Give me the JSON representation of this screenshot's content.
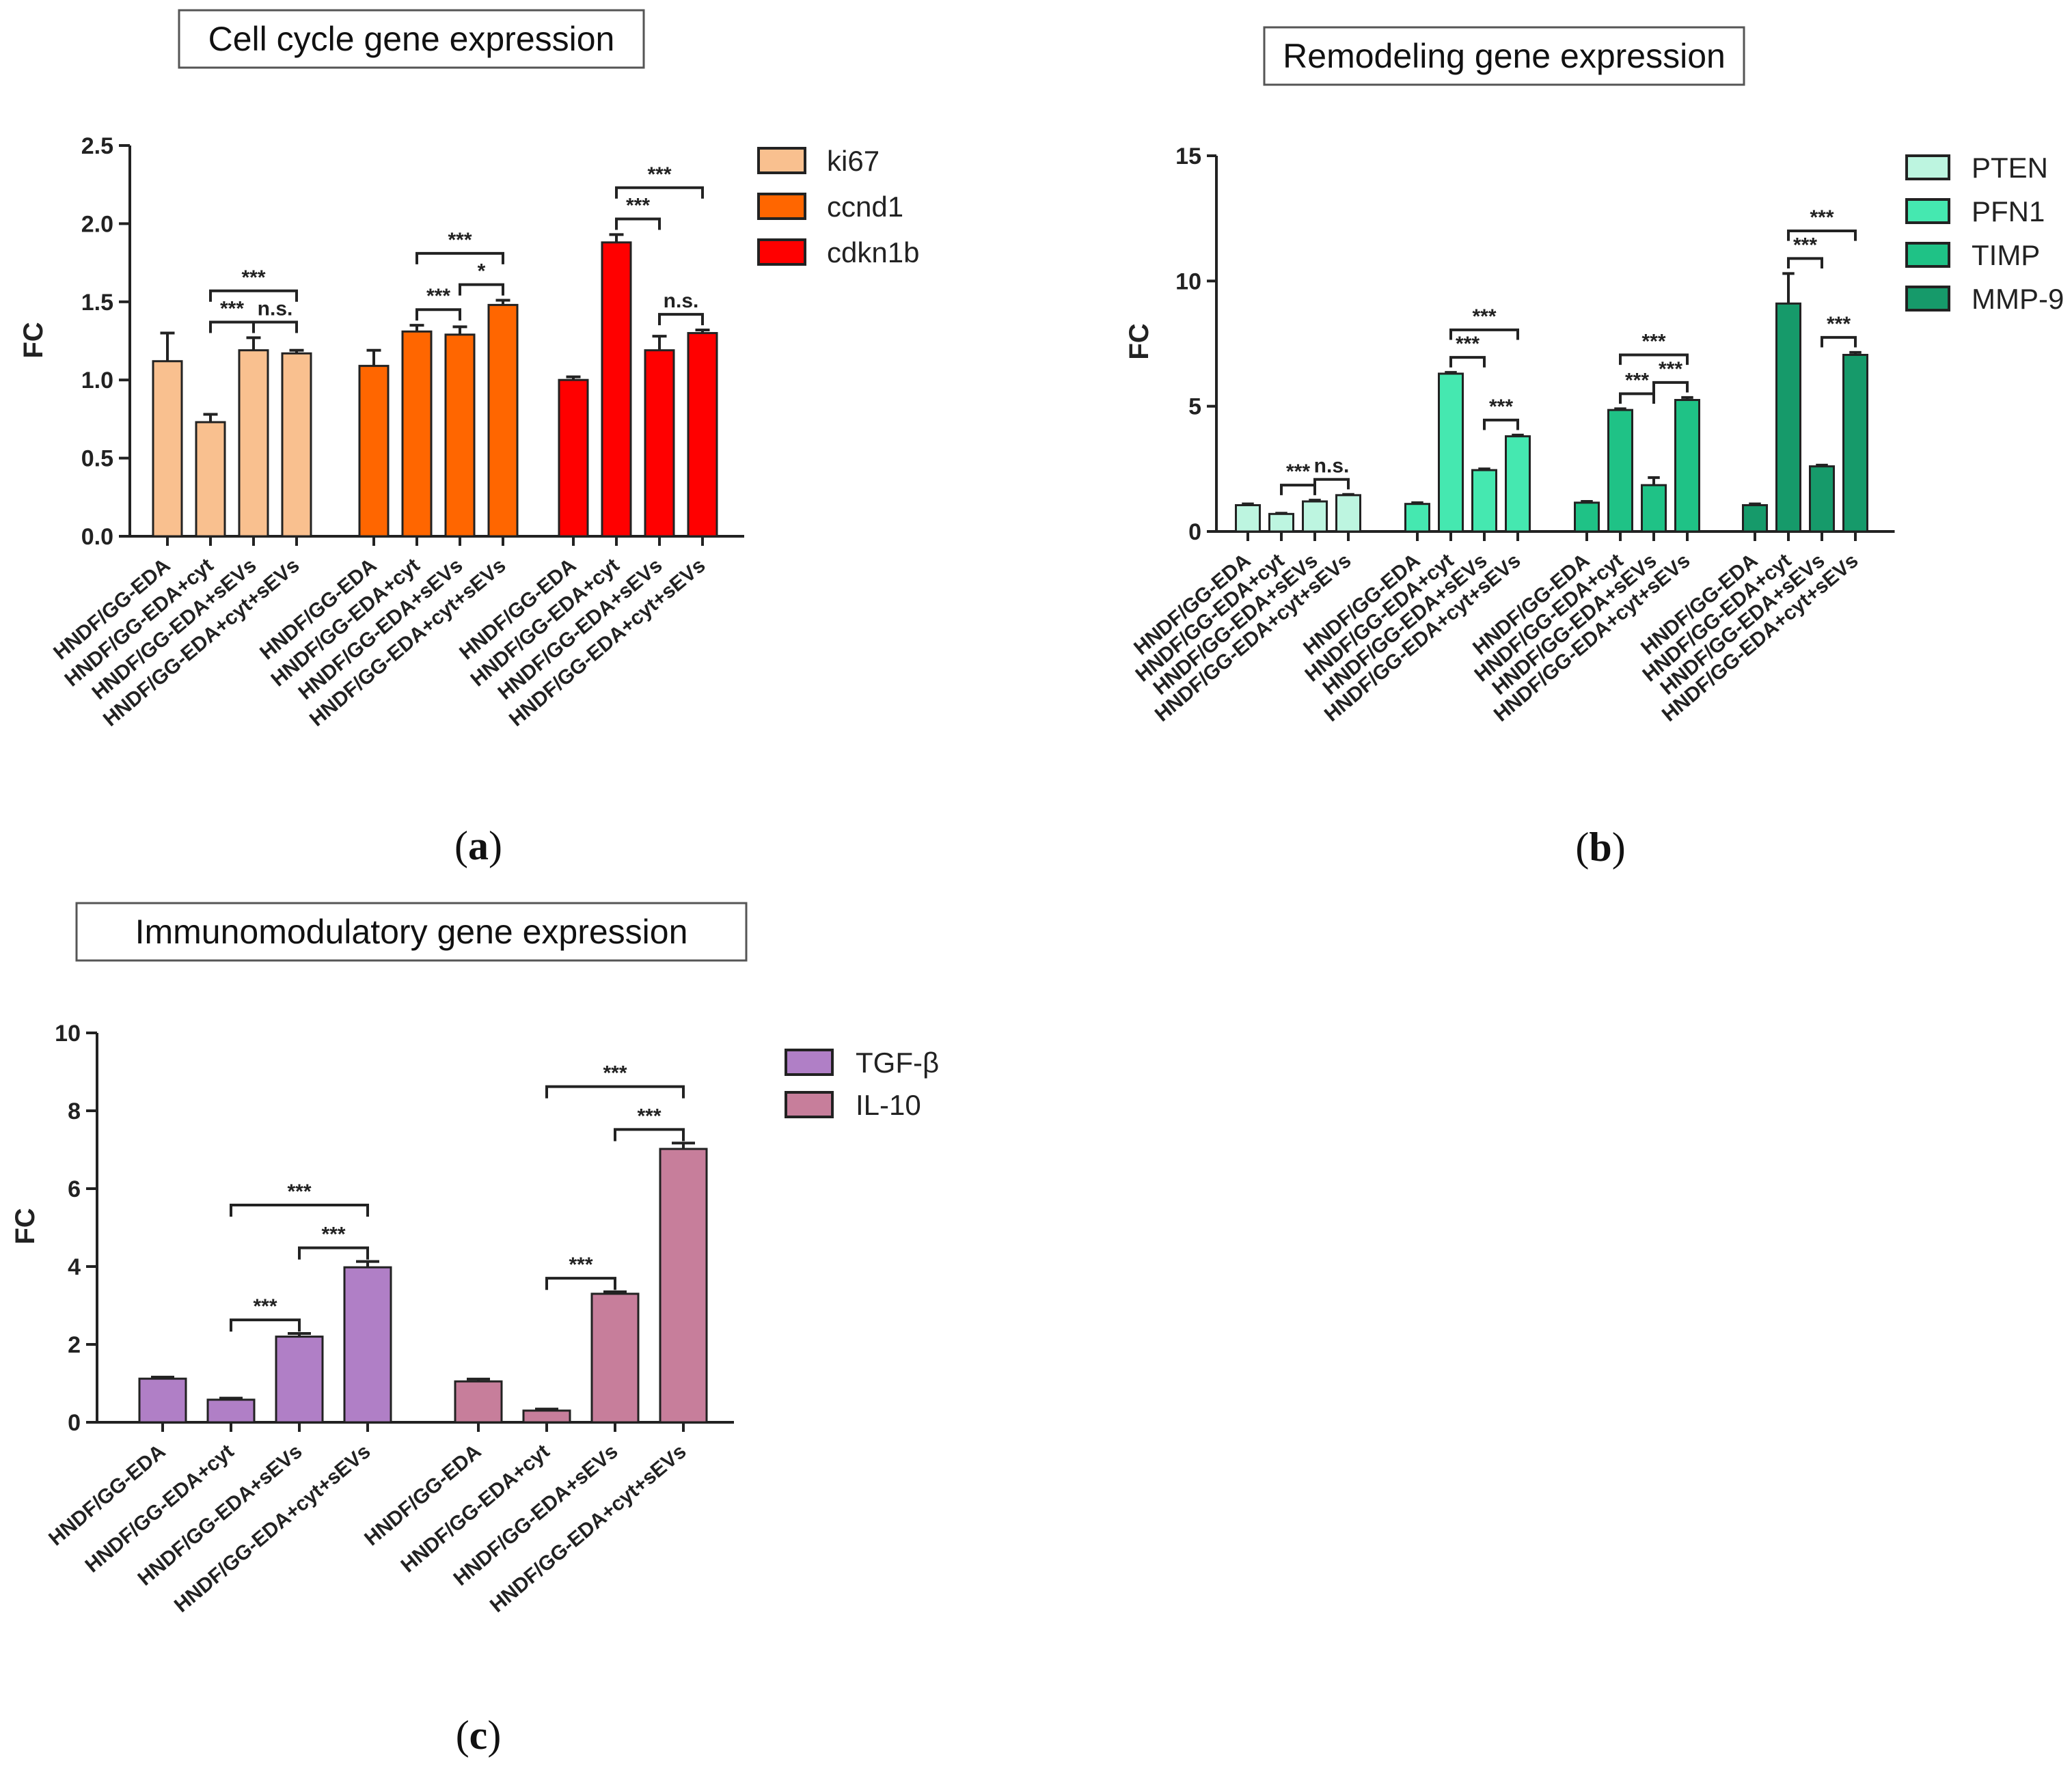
{
  "colors": {
    "ki67": "#F9C08F",
    "ccnd1": "#FF6600",
    "cdkn1b": "#FF0000",
    "PTEN": "#BDF5E0",
    "PFN1": "#45E8B0",
    "TIMP": "#1FC286",
    "MMP-9": "#169A6A",
    "TGF-β": "#B07FC6",
    "IL-10": "#C77E9B"
  },
  "chart_data": [
    {
      "type": "bar",
      "panel": "a",
      "panel_letter": "a",
      "title": "Cell cycle gene expression",
      "ylabel": "FC",
      "ylim": [
        0,
        2.5
      ],
      "yticks": [
        "0.0",
        "0.5",
        "1.0",
        "1.5",
        "2.0",
        "2.5"
      ],
      "categories": [
        "HNDF/GG-EDA",
        "HNDF/GG-EDA+cyt",
        "HNDF/GG-EDA+sEVs",
        "HNDF/GG-EDA+cyt+sEVs"
      ],
      "series": [
        {
          "name": "ki67",
          "values": [
            1.12,
            0.73,
            1.19,
            1.17
          ],
          "errors": [
            0.18,
            0.05,
            0.08,
            0.02
          ]
        },
        {
          "name": "ccnd1",
          "values": [
            1.09,
            1.31,
            1.29,
            1.48
          ],
          "errors": [
            0.1,
            0.04,
            0.05,
            0.03
          ]
        },
        {
          "name": "cdkn1b",
          "values": [
            1.0,
            1.88,
            1.19,
            1.3
          ],
          "errors": [
            0.02,
            0.05,
            0.09,
            0.02
          ]
        }
      ],
      "significance": [
        {
          "series": 0,
          "from": 1,
          "to": 3,
          "label": "***"
        },
        {
          "series": 0,
          "from": 1,
          "to": 2,
          "label": "***"
        },
        {
          "series": 0,
          "from": 2,
          "to": 3,
          "label": "n.s."
        },
        {
          "series": 1,
          "from": 1,
          "to": 3,
          "label": "***"
        },
        {
          "series": 1,
          "from": 1,
          "to": 2,
          "label": "***"
        },
        {
          "series": 1,
          "from": 2,
          "to": 3,
          "label": "*"
        },
        {
          "series": 2,
          "from": 1,
          "to": 3,
          "label": "***"
        },
        {
          "series": 2,
          "from": 1,
          "to": 2,
          "label": "***"
        },
        {
          "series": 2,
          "from": 2,
          "to": 3,
          "label": "n.s."
        }
      ]
    },
    {
      "type": "bar",
      "panel": "b",
      "panel_letter": "b",
      "title": "Remodeling gene expression",
      "ylabel": "FC",
      "ylim": [
        0,
        15
      ],
      "yticks": [
        "0",
        "5",
        "10",
        "15"
      ],
      "categories": [
        "HNDF/GG-EDA",
        "HNDF/GG-EDA+cyt",
        "HNDF/GG-EDA+sEVs",
        "HNDF/GG-EDA+cyt+sEVs"
      ],
      "series": [
        {
          "name": "PTEN",
          "values": [
            1.05,
            0.7,
            1.2,
            1.45
          ],
          "errors": [
            0.05,
            0.03,
            0.05,
            0.03
          ]
        },
        {
          "name": "PFN1",
          "values": [
            1.1,
            6.3,
            2.45,
            3.8
          ],
          "errors": [
            0.05,
            0.05,
            0.05,
            0.05
          ]
        },
        {
          "name": "TIMP",
          "values": [
            1.15,
            4.85,
            1.85,
            5.25
          ],
          "errors": [
            0.05,
            0.05,
            0.3,
            0.1
          ]
        },
        {
          "name": "MMP-9",
          "values": [
            1.05,
            9.1,
            2.6,
            7.05
          ],
          "errors": [
            0.05,
            1.2,
            0.05,
            0.1
          ]
        }
      ],
      "significance": [
        {
          "series": 0,
          "from": 1,
          "to": 2,
          "label": "***"
        },
        {
          "series": 0,
          "from": 2,
          "to": 3,
          "label": "n.s."
        },
        {
          "series": 1,
          "from": 1,
          "to": 3,
          "label": "***"
        },
        {
          "series": 1,
          "from": 1,
          "to": 2,
          "label": "***"
        },
        {
          "series": 1,
          "from": 2,
          "to": 3,
          "label": "***"
        },
        {
          "series": 2,
          "from": 1,
          "to": 3,
          "label": "***"
        },
        {
          "series": 2,
          "from": 1,
          "to": 2,
          "label": "***"
        },
        {
          "series": 2,
          "from": 2,
          "to": 3,
          "label": "***"
        },
        {
          "series": 3,
          "from": 1,
          "to": 3,
          "label": "***"
        },
        {
          "series": 3,
          "from": 1,
          "to": 2,
          "label": "***"
        },
        {
          "series": 3,
          "from": 2,
          "to": 3,
          "label": "***"
        }
      ]
    },
    {
      "type": "bar",
      "panel": "c",
      "panel_letter": "c",
      "title": "Immunomodulatory gene expression",
      "ylabel": "FC",
      "ylim": [
        0,
        10
      ],
      "yticks": [
        "0",
        "2",
        "4",
        "6",
        "8",
        "10"
      ],
      "categories": [
        "HNDF/GG-EDA",
        "HNDF/GG-EDA+cyt",
        "HNDF/GG-EDA+sEVs",
        "HNDF/GG-EDA+cyt+sEVs"
      ],
      "series": [
        {
          "name": "TGF-β",
          "values": [
            1.12,
            0.58,
            2.2,
            3.98
          ],
          "errors": [
            0.04,
            0.04,
            0.08,
            0.15
          ]
        },
        {
          "name": "IL-10",
          "values": [
            1.05,
            0.3,
            3.3,
            7.02
          ],
          "errors": [
            0.06,
            0.04,
            0.05,
            0.15
          ]
        }
      ],
      "significance": [
        {
          "series": 0,
          "from": 1,
          "to": 3,
          "label": "***"
        },
        {
          "series": 0,
          "from": 2,
          "to": 3,
          "label": "***"
        },
        {
          "series": 0,
          "from": 1,
          "to": 2,
          "label": "***"
        },
        {
          "series": 1,
          "from": 1,
          "to": 3,
          "label": "***"
        },
        {
          "series": 1,
          "from": 2,
          "to": 3,
          "label": "***"
        },
        {
          "series": 1,
          "from": 1,
          "to": 2,
          "label": "***"
        }
      ]
    }
  ]
}
